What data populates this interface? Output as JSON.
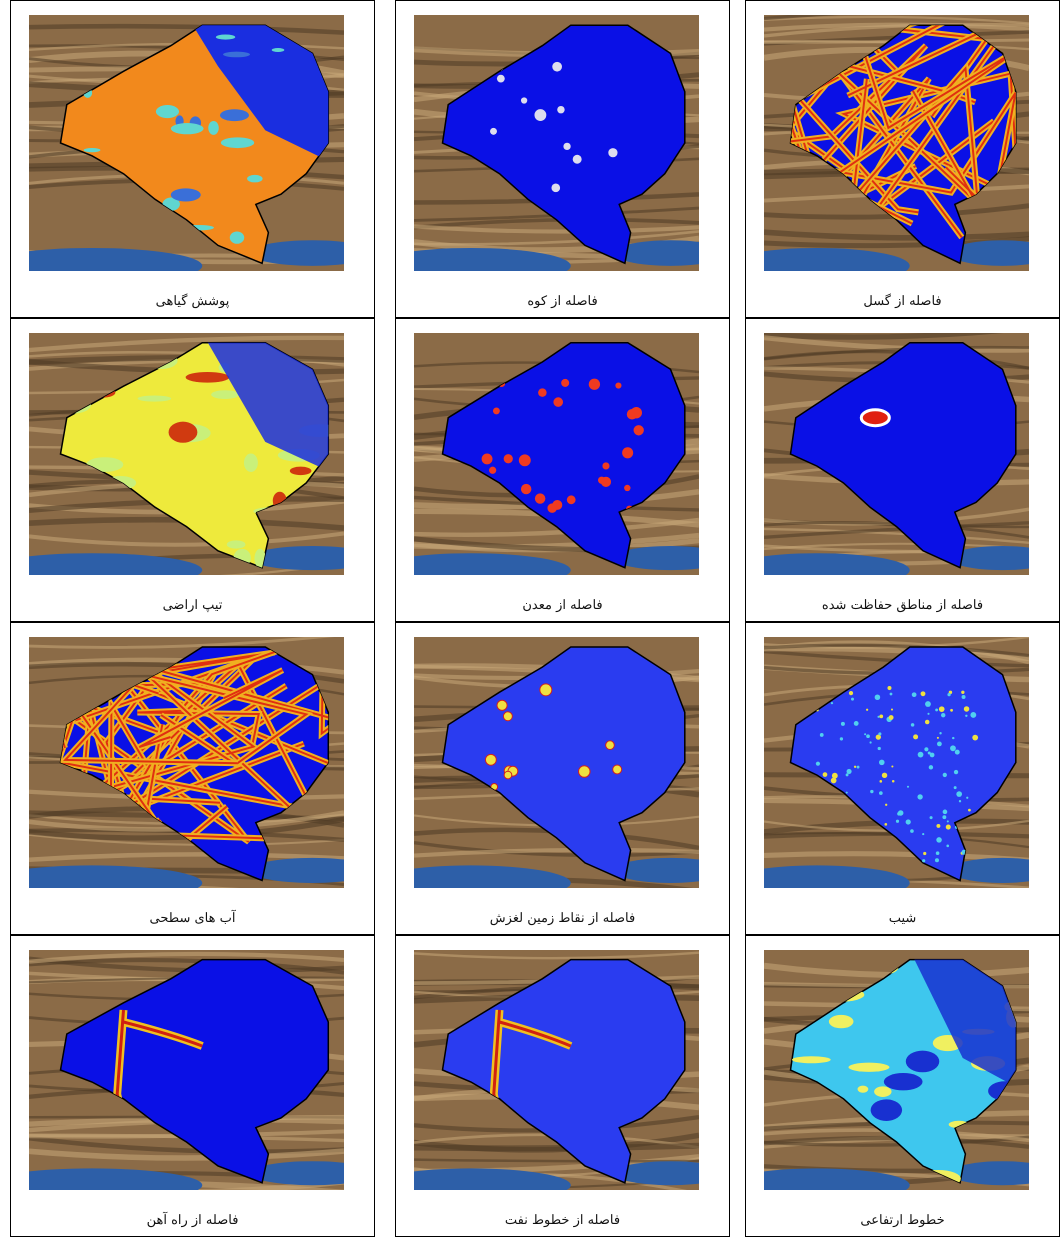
{
  "panels": [
    {
      "caption": "پوشش گیاهی"
    },
    {
      "caption": "فاصله از کوه"
    },
    {
      "caption": "فاصله از گسل"
    },
    {
      "caption": "تیپ اراضی"
    },
    {
      "caption": "فاصله از معدن"
    },
    {
      "caption": "فاصله از مناطق حفاظت شده"
    },
    {
      "caption": "آب های سطحی"
    },
    {
      "caption": "فاصله از نقاط زمین لغزش"
    },
    {
      "caption": "شیب"
    },
    {
      "caption": "فاصله از راه آهن"
    },
    {
      "caption": "فاصله از خطوط نفت"
    },
    {
      "caption": "خطوط ارتفاعی"
    }
  ]
}
